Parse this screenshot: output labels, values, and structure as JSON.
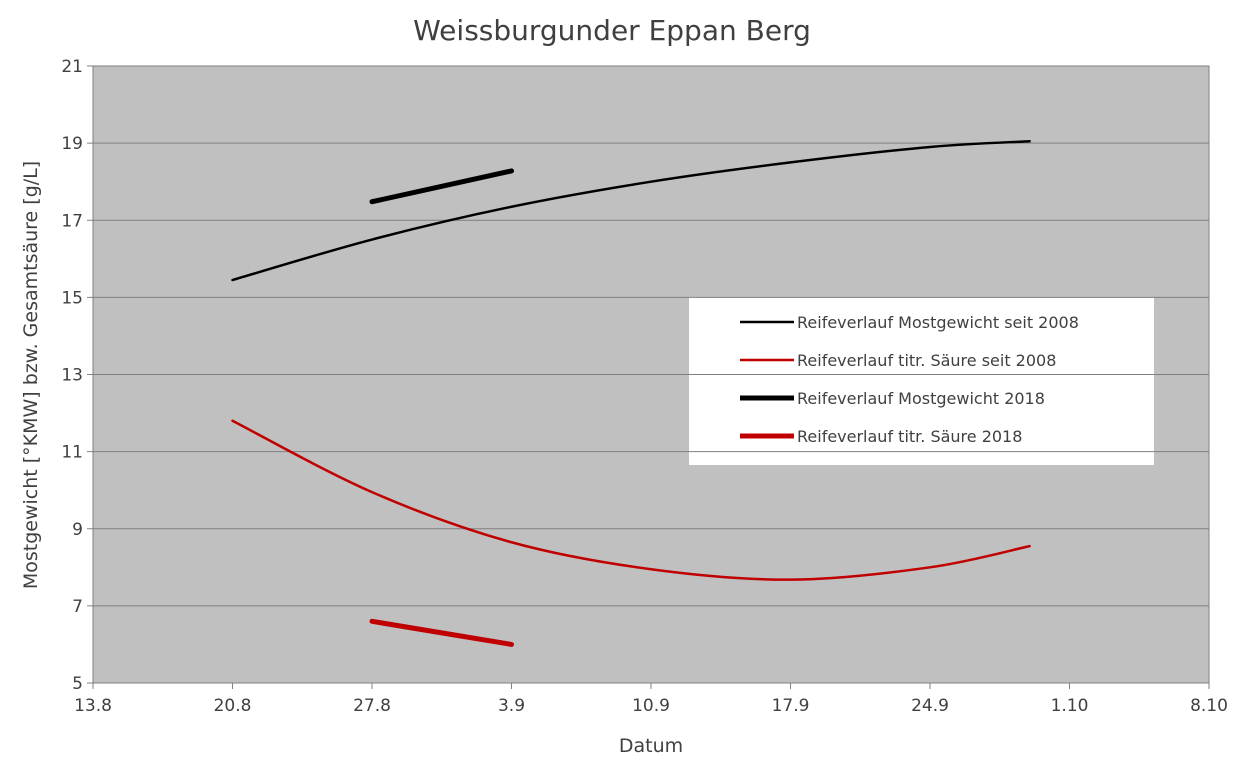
{
  "chart_data": {
    "type": "line",
    "title": "Weissburgunder Eppan Berg",
    "xlabel": "Datum",
    "ylabel": "Mostgewicht [°KMW] bzw. Gesamtsäure [g/L]",
    "xlim": [
      "13.8",
      "8.10"
    ],
    "xticks": [
      "13.8",
      "20.8",
      "27.8",
      "3.9",
      "10.9",
      "17.9",
      "24.9",
      "1.10",
      "8.10"
    ],
    "ylim": [
      5,
      21
    ],
    "yticks": [
      5,
      7,
      9,
      11,
      13,
      15,
      17,
      19,
      21
    ],
    "grid": true,
    "series": [
      {
        "name": "Reifeverlauf Mostgewicht seit 2008",
        "color": "#000000",
        "line_width": 2.5,
        "x": [
          "20.8",
          "27.8",
          "3.9",
          "10.9",
          "17.9",
          "24.9",
          "29.9"
        ],
        "values": [
          15.45,
          16.5,
          17.35,
          18.0,
          18.5,
          18.9,
          19.05
        ]
      },
      {
        "name": "Reifeverlauf titr. Säure seit 2008",
        "color": "#c00000",
        "line_width": 2.5,
        "x": [
          "20.8",
          "27.8",
          "3.9",
          "10.9",
          "17.9",
          "24.9",
          "29.9"
        ],
        "values": [
          11.8,
          9.95,
          8.65,
          7.95,
          7.68,
          8.0,
          8.55
        ]
      },
      {
        "name": "Reifeverlauf Mostgewicht 2018",
        "color": "#000000",
        "line_width": 5,
        "x": [
          "27.8",
          "3.9"
        ],
        "values": [
          17.48,
          18.28
        ]
      },
      {
        "name": "Reifeverlauf titr. Säure 2018",
        "color": "#c00000",
        "line_width": 5,
        "x": [
          "27.8",
          "3.9"
        ],
        "values": [
          6.6,
          6.0
        ]
      }
    ]
  }
}
